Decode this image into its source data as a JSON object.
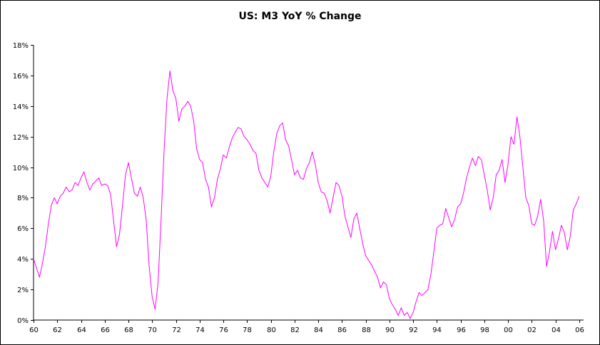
{
  "chart_data": {
    "type": "line",
    "title": "US: M3 YoY % Change",
    "xlabel": "",
    "ylabel": "",
    "xlim": [
      1960,
      2006.25
    ],
    "ylim": [
      0,
      18
    ],
    "grid": false,
    "legend": "none",
    "x_ticks": [
      1960,
      1962,
      1964,
      1966,
      1968,
      1970,
      1972,
      1974,
      1976,
      1978,
      1980,
      1982,
      1984,
      1986,
      1988,
      1990,
      1992,
      1994,
      1996,
      1998,
      2000,
      2002,
      2004,
      2006
    ],
    "x_tick_labels": [
      "60",
      "62",
      "64",
      "66",
      "68",
      "70",
      "72",
      "74",
      "76",
      "78",
      "80",
      "82",
      "84",
      "86",
      "88",
      "90",
      "92",
      "94",
      "96",
      "98",
      "00",
      "02",
      "04",
      "06"
    ],
    "y_ticks": [
      0,
      2,
      4,
      6,
      8,
      10,
      12,
      14,
      16,
      18
    ],
    "y_tick_labels": [
      "0%",
      "2%",
      "4%",
      "6%",
      "8%",
      "10%",
      "12%",
      "14%",
      "16%",
      "18%"
    ],
    "colors": {
      "line": "#ff00ff",
      "axis": "#000000",
      "frame": "#000000"
    },
    "series": [
      {
        "x": [
          1960.0,
          1960.25,
          1960.5,
          1960.75,
          1961.0,
          1961.25,
          1961.5,
          1961.75,
          1962.0,
          1962.25,
          1962.5,
          1962.75,
          1963.0,
          1963.25,
          1963.5,
          1963.75,
          1964.0,
          1964.25,
          1964.5,
          1964.75,
          1965.0,
          1965.25,
          1965.5,
          1965.75,
          1966.0,
          1966.25,
          1966.5,
          1966.75,
          1967.0,
          1967.25,
          1967.5,
          1967.75,
          1968.0,
          1968.25,
          1968.5,
          1968.75,
          1969.0,
          1969.25,
          1969.5,
          1969.75,
          1970.0,
          1970.25,
          1970.5,
          1970.75,
          1971.0,
          1971.25,
          1971.5,
          1971.75,
          1972.0,
          1972.25,
          1972.5,
          1972.75,
          1973.0,
          1973.25,
          1973.5,
          1973.75,
          1974.0,
          1974.25,
          1974.5,
          1974.75,
          1975.0,
          1975.25,
          1975.5,
          1975.75,
          1976.0,
          1976.25,
          1976.5,
          1976.75,
          1977.0,
          1977.25,
          1977.5,
          1977.75,
          1978.0,
          1978.25,
          1978.5,
          1978.75,
          1979.0,
          1979.25,
          1979.5,
          1979.75,
          1980.0,
          1980.25,
          1980.5,
          1980.75,
          1981.0,
          1981.25,
          1981.5,
          1981.75,
          1982.0,
          1982.25,
          1982.5,
          1982.75,
          1983.0,
          1983.25,
          1983.5,
          1983.75,
          1984.0,
          1984.25,
          1984.5,
          1984.75,
          1985.0,
          1985.25,
          1985.5,
          1985.75,
          1986.0,
          1986.25,
          1986.5,
          1986.75,
          1987.0,
          1987.25,
          1987.5,
          1987.75,
          1988.0,
          1988.25,
          1988.5,
          1988.75,
          1989.0,
          1989.25,
          1989.5,
          1989.75,
          1990.0,
          1990.25,
          1990.5,
          1990.75,
          1991.0,
          1991.25,
          1991.5,
          1991.75,
          1992.0,
          1992.25,
          1992.5,
          1992.75,
          1993.0,
          1993.25,
          1993.5,
          1993.75,
          1994.0,
          1994.25,
          1994.5,
          1994.75,
          1995.0,
          1995.25,
          1995.5,
          1995.75,
          1996.0,
          1996.25,
          1996.5,
          1996.75,
          1997.0,
          1997.25,
          1997.5,
          1997.75,
          1998.0,
          1998.25,
          1998.5,
          1998.75,
          1999.0,
          1999.25,
          1999.5,
          1999.75,
          2000.0,
          2000.25,
          2000.5,
          2000.75,
          2001.0,
          2001.25,
          2001.5,
          2001.75,
          2002.0,
          2002.25,
          2002.5,
          2002.75,
          2003.0,
          2003.25,
          2003.5,
          2003.75,
          2004.0,
          2004.25,
          2004.5,
          2004.75,
          2005.0,
          2005.25,
          2005.5,
          2005.75,
          2006.0
        ],
        "values": [
          4.0,
          3.4,
          2.8,
          3.7,
          4.8,
          6.3,
          7.5,
          8.0,
          7.6,
          8.1,
          8.3,
          8.7,
          8.4,
          8.5,
          9.0,
          8.8,
          9.3,
          9.7,
          9.0,
          8.5,
          8.9,
          9.1,
          9.3,
          8.8,
          8.9,
          8.8,
          8.2,
          6.5,
          4.8,
          5.6,
          7.5,
          9.5,
          10.3,
          9.3,
          8.3,
          8.1,
          8.7,
          8.0,
          6.5,
          3.5,
          1.5,
          0.7,
          2.5,
          6.5,
          11.0,
          14.5,
          16.3,
          15.0,
          14.5,
          13.0,
          13.8,
          14.0,
          14.3,
          14.0,
          13.0,
          11.2,
          10.5,
          10.3,
          9.2,
          8.7,
          7.4,
          8.0,
          9.2,
          9.9,
          10.8,
          10.6,
          11.3,
          11.9,
          12.3,
          12.6,
          12.5,
          12.0,
          11.8,
          11.5,
          11.1,
          10.9,
          9.8,
          9.3,
          9.0,
          8.7,
          9.4,
          11.0,
          12.2,
          12.7,
          12.9,
          11.8,
          11.4,
          10.5,
          9.5,
          9.8,
          9.3,
          9.2,
          9.9,
          10.3,
          11.0,
          10.2,
          9.0,
          8.4,
          8.3,
          7.8,
          7.0,
          8.0,
          9.0,
          8.8,
          8.1,
          6.8,
          6.1,
          5.4,
          6.6,
          7.0,
          6.0,
          5.0,
          4.2,
          3.9,
          3.6,
          3.2,
          2.8,
          2.1,
          2.5,
          2.3,
          1.4,
          1.0,
          0.7,
          0.3,
          0.8,
          0.3,
          0.5,
          0.1,
          0.5,
          1.2,
          1.8,
          1.6,
          1.8,
          2.0,
          3.0,
          4.5,
          6.0,
          6.2,
          6.3,
          7.3,
          6.7,
          6.1,
          6.6,
          7.4,
          7.6,
          8.3,
          9.3,
          10.0,
          10.6,
          10.1,
          10.7,
          10.5,
          9.5,
          8.5,
          7.2,
          8.0,
          9.5,
          9.8,
          10.5,
          9.0,
          10.2,
          12.0,
          11.5,
          13.3,
          12.0,
          10.0,
          8.0,
          7.5,
          6.3,
          6.2,
          6.8,
          7.9,
          6.5,
          3.5,
          4.5,
          5.8,
          4.6,
          5.3,
          6.2,
          5.7,
          4.6,
          5.5,
          7.2,
          7.6,
          8.1
        ]
      }
    ]
  }
}
